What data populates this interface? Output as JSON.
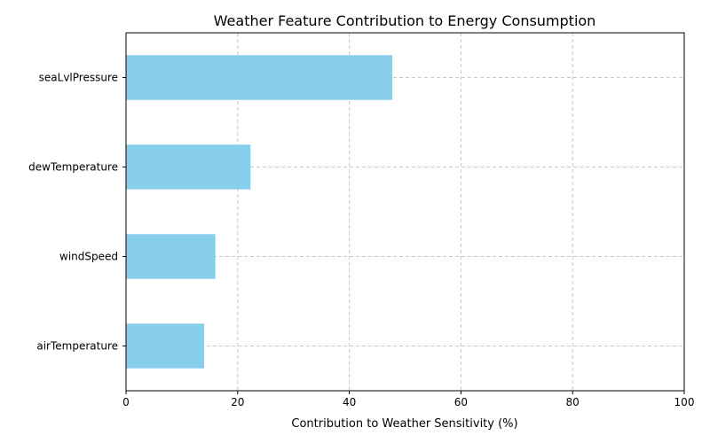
{
  "chart_data": {
    "type": "bar",
    "orientation": "horizontal",
    "title": "Weather Feature Contribution to Energy Consumption",
    "xlabel": "Contribution to Weather Sensitivity (%)",
    "ylabel": "",
    "categories": [
      "airTemperature",
      "windSpeed",
      "dewTemperature",
      "seaLvlPressure"
    ],
    "values": [
      14.0,
      16.0,
      22.3,
      47.7
    ],
    "xlim": [
      0,
      100
    ],
    "xticks": [
      "0",
      "20",
      "40",
      "60",
      "80",
      "100"
    ],
    "grid": true,
    "bar_color": "#87CEEB",
    "grid_color": "#c8c8c8"
  }
}
